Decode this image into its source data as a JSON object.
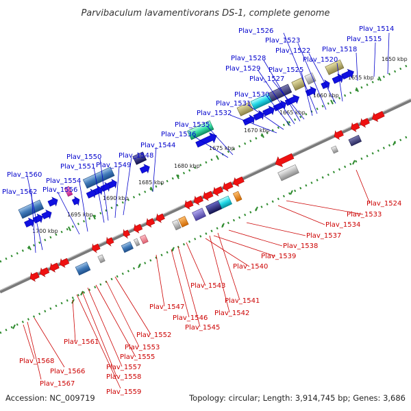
{
  "title": "Parvibaculum lavamentivorans DS-1, complete genome",
  "footer": {
    "accession": "Accession: NC_009719",
    "summary": "Topology: circular; Length: 3,914,745 bp; Genes: 3,686"
  },
  "colors": {
    "forward_label": "#0000cc",
    "reverse_label": "#cc0000",
    "backbone": "#8a8a8a",
    "dots": "#2e8b2e"
  },
  "ticks": [
    "1650 kbp",
    "1655 kbp",
    "1660 kbp",
    "1665 kbp",
    "1670 kbp",
    "1675 kbp",
    "1680 kbp",
    "1685 kbp",
    "1690 kbp",
    "1695 kbp",
    "1700 kbp"
  ],
  "forward_labels": [
    "Plav_1514",
    "Plav_1515",
    "Plav_1518",
    "Plav_1520",
    "Plav_1522",
    "Plav_1523",
    "Plav_1525",
    "Plav_1526",
    "Plav_1527",
    "Plav_1528",
    "Plav_1529",
    "Plav_1530",
    "Plav_1531",
    "Plav_1532",
    "Plav_1535",
    "Plav_1536",
    "Plav_1544",
    "Plav_1548",
    "Plav_1549",
    "Plav_1550",
    "Plav_1551",
    "Plav_1554",
    "Plav_1556",
    "Plav_1560",
    "Plav_1562"
  ],
  "reverse_labels": [
    "Plav_1524",
    "Plav_1533",
    "Plav_1534",
    "Plav_1537",
    "Plav_1538",
    "Plav_1539",
    "Plav_1540",
    "Plav_1541",
    "Plav_1542",
    "Plav_1543",
    "Plav_1545",
    "Plav_1546",
    "Plav_1547",
    "Plav_1552",
    "Plav_1553",
    "Plav_1555",
    "Plav_1557",
    "Plav_1558",
    "Plav_1559",
    "Plav_1561",
    "Plav_1566",
    "Plav_1567",
    "Plav_1568"
  ]
}
